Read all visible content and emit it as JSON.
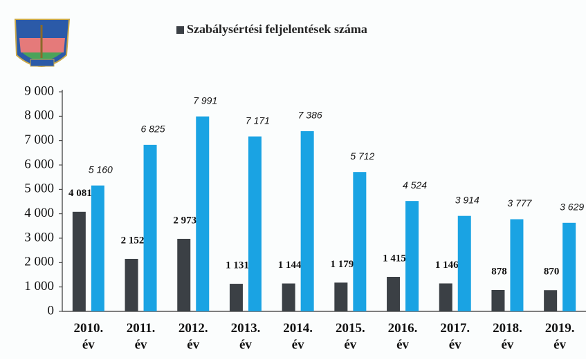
{
  "chart_data": {
    "type": "bar",
    "legend_title": "Szabálysértési feljelentések száma",
    "categories": [
      "2010.\név",
      "2011.\név",
      "2012.\név",
      "2013.\név",
      "2014.\név",
      "2015.\név",
      "2016.\név",
      "2017.\név",
      "2018.\név",
      "2019.\név"
    ],
    "series": [
      {
        "name": "Szabálysértési feljelentések száma",
        "color": "#3b4045",
        "values": [
          4081,
          2152,
          2973,
          1131,
          1144,
          1179,
          1415,
          1146,
          878,
          870
        ],
        "value_labels": [
          "4 081",
          "2 152",
          "2 973",
          "1 131",
          "1 144",
          "1 179",
          "1 415",
          "1 146",
          "878",
          "870"
        ]
      },
      {
        "color": "#1aa3e3",
        "values": [
          5160,
          6825,
          7991,
          7171,
          7386,
          5712,
          4524,
          3914,
          3777,
          3629
        ],
        "value_labels": [
          "5 160",
          "6 825",
          "7 991",
          "7 171",
          "7 386",
          "5 712",
          "4 524",
          "3 914",
          "3 777",
          "3 629"
        ]
      }
    ],
    "ylim": [
      0,
      9000
    ],
    "yticks": [
      0,
      {
        "value": 1000,
        "label": "1 000"
      },
      {
        "value": 2000,
        "label": "2 000"
      },
      {
        "value": 3000,
        "label": "3 000"
      },
      {
        "value": 4000,
        "label": "4 000"
      },
      {
        "value": 5000,
        "label": "5 000"
      },
      {
        "value": 6000,
        "label": "6 000"
      },
      {
        "value": 7000,
        "label": "7 000"
      },
      {
        "value": 8000,
        "label": "8 000"
      },
      {
        "value": 9000,
        "label": "9 000"
      }
    ],
    "grid": false
  }
}
